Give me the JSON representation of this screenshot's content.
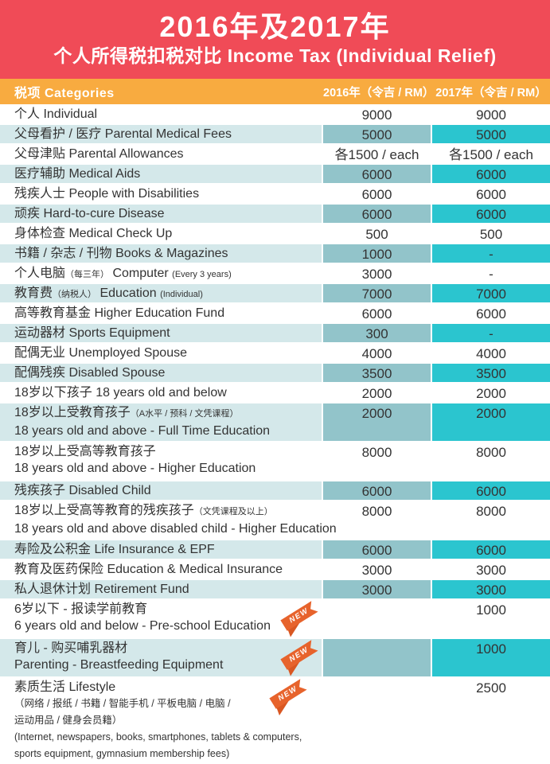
{
  "header": {
    "title_line1": "2016年及2017年",
    "title_line2": "个人所得税扣税对比 Income Tax (Individual Relief)"
  },
  "table": {
    "header": {
      "category": "税项 Categories",
      "col_2016": "2016年（令吉 / RM）",
      "col_2017": "2017年（令吉 / RM）"
    },
    "new_badge_label": "NEW",
    "rows": [
      {
        "label": [
          {
            "text": "个人 Individual",
            "small": false
          }
        ],
        "v2016": "9000",
        "v2017": "9000",
        "teal": false
      },
      {
        "label": [
          {
            "text": "父母看护 / 医疗 Parental Medical Fees",
            "small": false
          }
        ],
        "v2016": "5000",
        "v2017": "5000",
        "teal": true
      },
      {
        "label": [
          {
            "text": "父母津贴 Parental Allowances",
            "small": false
          }
        ],
        "v2016": "各1500  / each",
        "v2017": "各1500  / each",
        "teal": false
      },
      {
        "label": [
          {
            "text": "医疗辅助 Medical Aids",
            "small": false
          }
        ],
        "v2016": "6000",
        "v2017": "6000",
        "teal": true
      },
      {
        "label": [
          {
            "text": "残疾人士 People with Disabilities",
            "small": false
          }
        ],
        "v2016": "6000",
        "v2017": "6000",
        "teal": false
      },
      {
        "label": [
          {
            "text": "顽疾 Hard-to-cure Disease",
            "small": false
          }
        ],
        "v2016": "6000",
        "v2017": "6000",
        "teal": true
      },
      {
        "label": [
          {
            "text": "身体检查 Medical Check Up",
            "small": false
          }
        ],
        "v2016": "500",
        "v2017": "500",
        "teal": false
      },
      {
        "label": [
          {
            "text": "书籍 / 杂志 / 刊物 Books & Magazines",
            "small": false
          }
        ],
        "v2016": "1000",
        "v2017": "-",
        "teal": true
      },
      {
        "label": [
          {
            "text": "个人电脑",
            "small": false
          },
          {
            "text": "（每三年）",
            "small": true
          },
          {
            "text": " Computer ",
            "small": false
          },
          {
            "text": "(Every 3 years)",
            "small": true
          }
        ],
        "v2016": "3000",
        "v2017": "-",
        "teal": false
      },
      {
        "label": [
          {
            "text": "教育费",
            "small": false
          },
          {
            "text": "（纳税人）",
            "small": true
          },
          {
            "text": " Education ",
            "small": false
          },
          {
            "text": "(Individual)",
            "small": true
          }
        ],
        "v2016": "7000",
        "v2017": "7000",
        "teal": true
      },
      {
        "label": [
          {
            "text": "高等教育基金 Higher Education Fund",
            "small": false
          }
        ],
        "v2016": "6000",
        "v2017": "6000",
        "teal": false
      },
      {
        "label": [
          {
            "text": "运动器材 Sports Equipment",
            "small": false
          }
        ],
        "v2016": "300",
        "v2017": "-",
        "teal": true
      },
      {
        "label": [
          {
            "text": "配偶无业 Unemployed Spouse",
            "small": false
          }
        ],
        "v2016": "4000",
        "v2017": "4000",
        "teal": false
      },
      {
        "label": [
          {
            "text": "配偶残疾 Disabled Spouse",
            "small": false
          }
        ],
        "v2016": "3500",
        "v2017": "3500",
        "teal": true
      },
      {
        "label": [
          {
            "text": "18岁以下孩子 18 years old and below",
            "small": false
          }
        ],
        "v2016": "2000",
        "v2017": "2000",
        "teal": false
      },
      {
        "label": [
          {
            "text": "18岁以上受教育孩子",
            "small": false
          },
          {
            "text": "（A水平 / 预科 / 文凭课程）",
            "small": true
          }
        ],
        "line2": "18 years old and above - Full Time Education",
        "v2016": "2000",
        "v2017": "2000",
        "teal": true
      },
      {
        "label": [
          {
            "text": "18岁以上受高等教育孩子",
            "small": false
          }
        ],
        "line2": "18 years old and above - Higher Education",
        "v2016": "8000",
        "v2017": "8000",
        "teal": false
      },
      {
        "label": [
          {
            "text": "残疾孩子 Disabled Child",
            "small": false
          }
        ],
        "v2016": "6000",
        "v2017": "6000",
        "teal": true
      },
      {
        "label": [
          {
            "text": "18岁以上受高等教育的残疾孩子",
            "small": false
          },
          {
            "text": "（文凭课程及以上）",
            "small": true
          }
        ],
        "line2": "18 years old and above disabled child - Higher Education",
        "v2016": "8000",
        "v2017": "8000",
        "teal": false
      },
      {
        "label": [
          {
            "text": "寿险及公积金 Life Insurance & EPF",
            "small": false
          }
        ],
        "v2016": "6000",
        "v2017": "6000",
        "teal": true
      },
      {
        "label": [
          {
            "text": "教育及医药保险 Education & Medical Insurance",
            "small": false
          }
        ],
        "v2016": "3000",
        "v2017": "3000",
        "teal": false
      },
      {
        "label": [
          {
            "text": "私人退休计划 Retirement Fund",
            "small": false
          }
        ],
        "v2016": "3000",
        "v2017": "3000",
        "teal": true
      },
      {
        "label": [
          {
            "text": "6岁以下 - 报读学前教育",
            "small": false
          }
        ],
        "line2": "6 years old and below - Pre-school Education",
        "v2016": "",
        "v2017": "1000",
        "teal": false,
        "new": true
      },
      {
        "label": [
          {
            "text": "育儿 - 购买哺乳器材",
            "small": false
          }
        ],
        "line2": "Parenting - Breastfeeding Equipment",
        "v2016": "",
        "v2017": "1000",
        "teal": true,
        "new": true
      },
      {
        "label": [
          {
            "text": "素质生活 Lifestyle",
            "small": false
          }
        ],
        "sub_lines": [
          "（网络 / 报纸 / 书籍 / 智能手机 / 平板电脑 / 电脑 /",
          "运动用品 / 健身会员籍）",
          "(Internet, newspapers, books, smartphones, tablets & computers,",
          "sports equipment, gymnasium membership fees)"
        ],
        "v2016": "",
        "v2017": "2500",
        "teal": false,
        "new": true
      }
    ]
  },
  "colors": {
    "header_red": "#f04b57",
    "bar_orange": "#f8ab40",
    "row_light_teal": "#d4e8ea",
    "cell_2016_teal": "#92c4ca",
    "cell_2017_teal": "#2bc5cf",
    "badge_orange": "#e7632c",
    "badge_fold_orange": "#d95722",
    "text_dark": "#333333",
    "text_white": "#ffffff"
  }
}
